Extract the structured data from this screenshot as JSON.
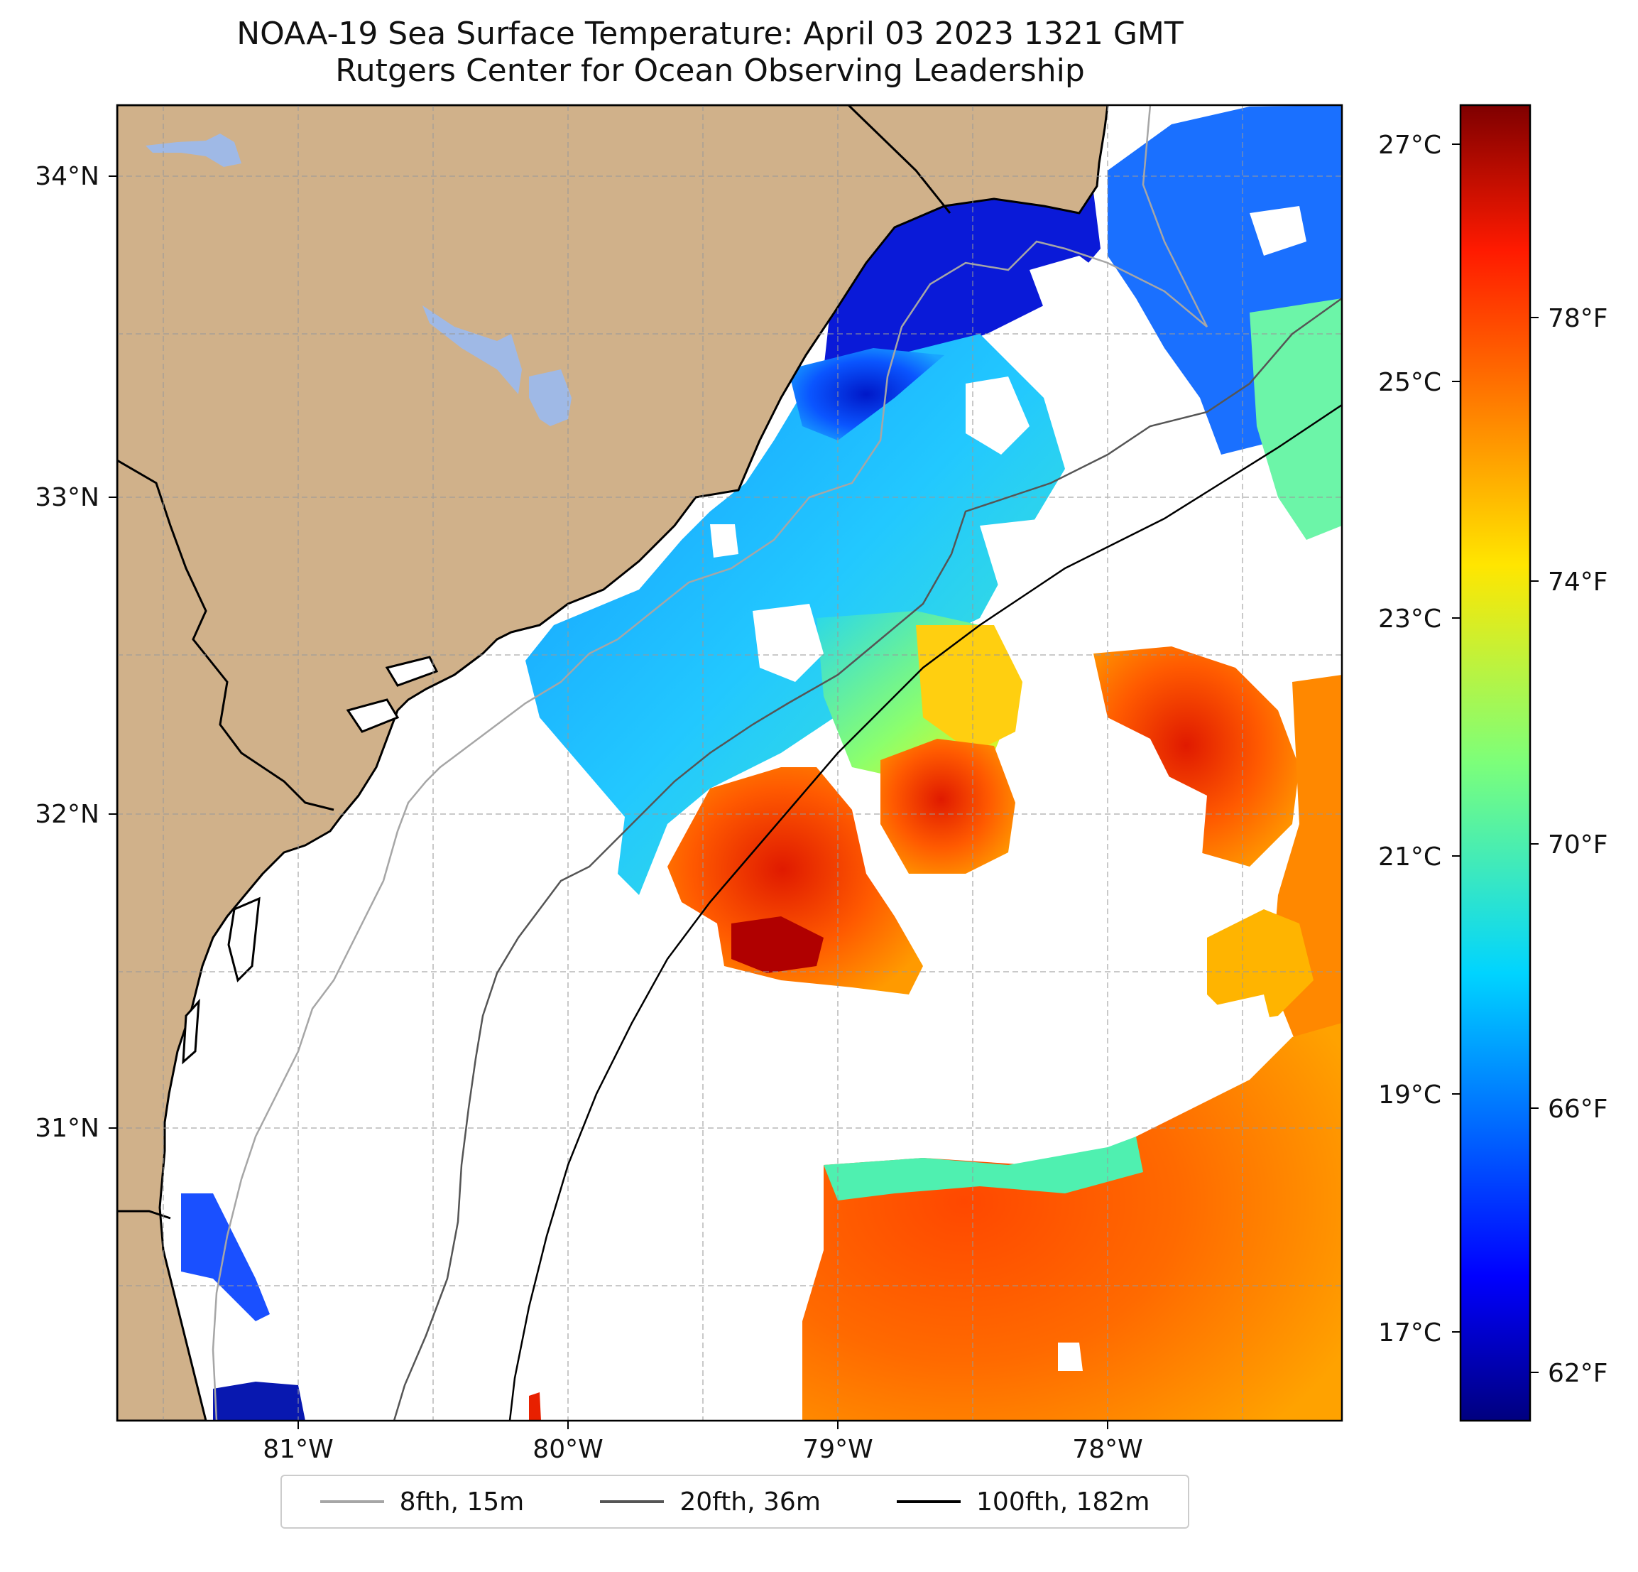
{
  "title": {
    "line1": "NOAA-19 Sea Surface Temperature: April 03 2023 1321 GMT",
    "line2": "Rutgers Center for Ocean Observing Leadership"
  },
  "map": {
    "lat_labels": [
      "34°N",
      "33°N",
      "32°N",
      "31°N"
    ],
    "lon_labels": [
      "81°W",
      "80°W",
      "79°W",
      "78°W"
    ],
    "colors": {
      "land": "#d0b18a",
      "lakes": "#9fb9e6",
      "coast": "#000000"
    }
  },
  "colorbar": {
    "celsius_labels": [
      "27°C",
      "25°C",
      "23°C",
      "21°C",
      "19°C",
      "17°C"
    ],
    "fahrenheit_labels": [
      "78°F",
      "74°F",
      "70°F",
      "66°F",
      "62°F"
    ],
    "range_f": [
      60.7,
      81.2
    ],
    "colormap": "jet"
  },
  "legend": {
    "items": [
      {
        "label": "8fth, 15m",
        "color": "#a6a6a6"
      },
      {
        "label": "20fth, 36m",
        "color": "#555555"
      },
      {
        "label": "100fth, 182m",
        "color": "#000000"
      }
    ]
  }
}
